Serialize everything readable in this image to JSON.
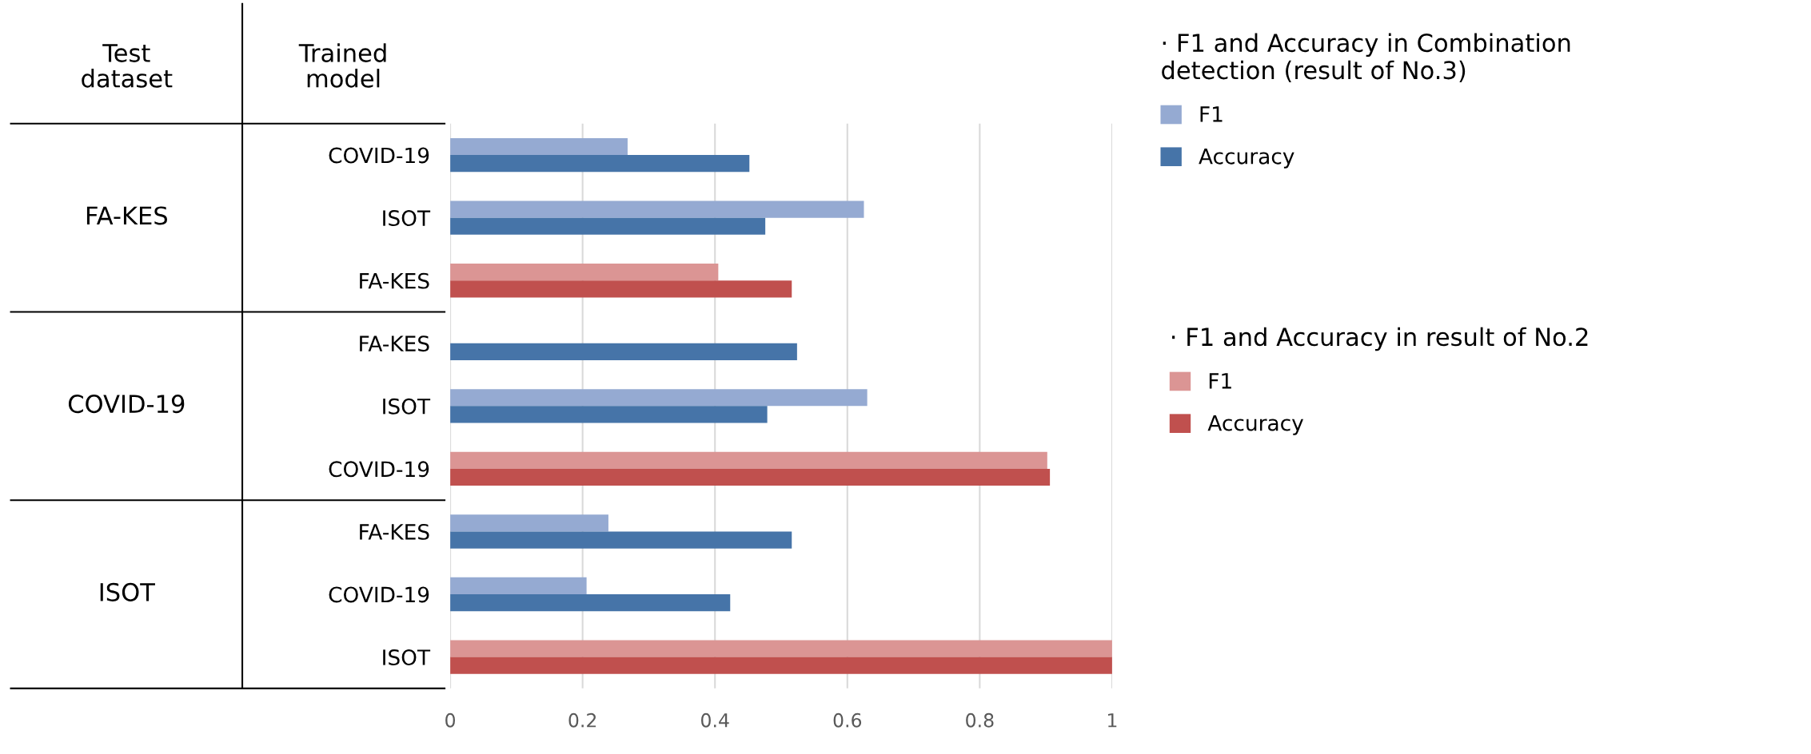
{
  "chart_data": {
    "type": "bar",
    "orientation": "horizontal",
    "categories": [
      "COVID-19",
      "ISOT",
      "FA-KES",
      "FA-KES",
      "ISOT",
      "COVID-19",
      "FA-KES",
      "COVID-19",
      "ISOT"
    ],
    "series": [
      {
        "name": "F1",
        "color": "#95aad2",
        "values": [
          0.268,
          0.625,
          null,
          null,
          0.63,
          null,
          0.239,
          0.206,
          null
        ]
      },
      {
        "name": "Accuracy",
        "color": "#4674a8",
        "values": [
          0.452,
          0.476,
          null,
          0.524,
          0.479,
          null,
          0.516,
          0.423,
          null
        ]
      },
      {
        "name": "F1",
        "color": "#db9594",
        "values": [
          null,
          null,
          0.405,
          null,
          null,
          0.902,
          null,
          null,
          1.0
        ]
      },
      {
        "name": "Accuracy",
        "color": "#c0504e",
        "values": [
          null,
          null,
          0.516,
          null,
          null,
          0.906,
          null,
          null,
          1.0
        ]
      }
    ],
    "xlim": [
      0,
      1
    ],
    "xticks": [
      0,
      0.2,
      0.4,
      0.6,
      0.8,
      1
    ],
    "grid": "x",
    "legend": "right",
    "legend_title": "· F1 and Accuracy in Combination\ndetection (result of No.3)",
    "annotations": [
      "Test\ndataset",
      "Trained\nmodel",
      "FA-KES",
      "COVID-19",
      "ISOT",
      "· F1 and Accuracy in result of No.2"
    ]
  }
}
